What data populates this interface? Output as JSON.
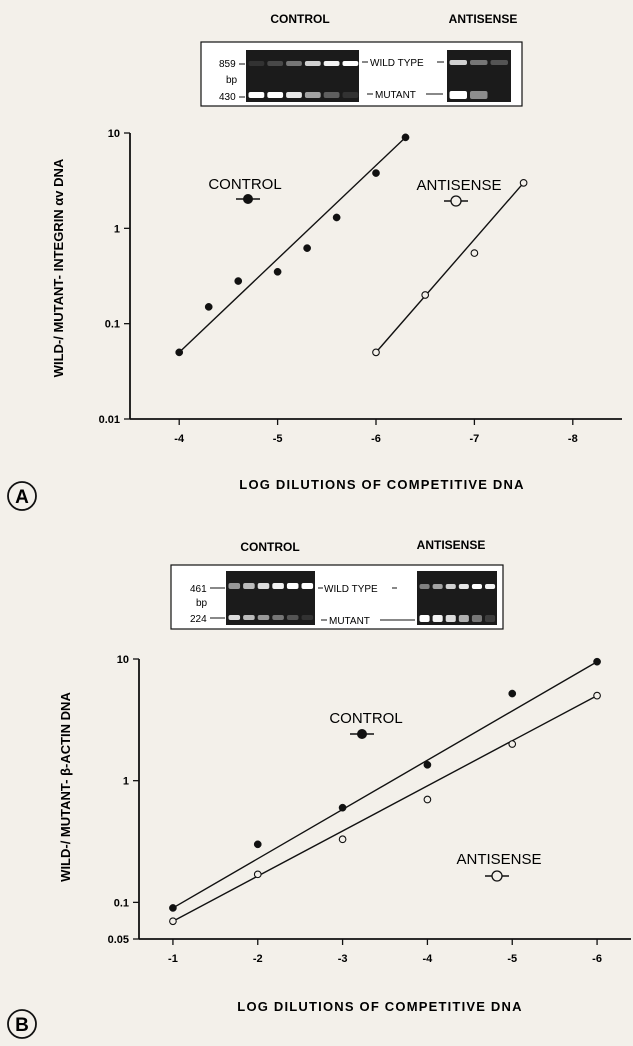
{
  "chart_data": [
    {
      "panel": "A",
      "type": "scatter",
      "ylabel": "WILD-/ MUTANT- INTEGRIN αv DNA",
      "xlabel": "LOG DILUTIONS OF COMPETITIVE DNA",
      "y_scale": "log",
      "xlim": [
        -3.5,
        -8.5
      ],
      "ylim": [
        0.01,
        10
      ],
      "x_ticks": [
        -4,
        -5,
        -6,
        -7,
        -8
      ],
      "x_tick_labels": [
        "-4",
        "-5",
        "-6",
        "-7",
        "-8"
      ],
      "y_ticks": [
        0.01,
        0.1,
        1,
        10
      ],
      "y_tick_labels": [
        "0.01",
        "0.1",
        "1",
        "10"
      ],
      "grid": false,
      "series": [
        {
          "name": "CONTROL",
          "marker": "filled-circle",
          "x": [
            -4.0,
            -4.3,
            -4.6,
            -5.0,
            -5.3,
            -5.6,
            -6.0,
            -6.3
          ],
          "y": [
            0.05,
            0.15,
            0.28,
            0.35,
            0.62,
            1.3,
            3.8,
            9.0
          ],
          "fit": {
            "x": [
              -4.0,
              -6.3
            ],
            "y": [
              0.05,
              9.0
            ]
          }
        },
        {
          "name": "ANTISENSE",
          "marker": "open-circle",
          "x": [
            -6.0,
            -6.5,
            -7.0,
            -7.5
          ],
          "y": [
            0.05,
            0.2,
            0.55,
            3.0
          ],
          "fit": {
            "x": [
              -6.0,
              -7.5
            ],
            "y": [
              0.05,
              3.0
            ]
          }
        }
      ],
      "gel": {
        "control_title": "CONTROL",
        "antisense_title": "ANTISENSE",
        "size_top": "859",
        "size_unit": "bp",
        "size_bottom": "430",
        "band_top": "WILD TYPE",
        "band_bottom": "MUTANT"
      }
    },
    {
      "panel": "B",
      "type": "scatter",
      "ylabel": "WILD-/ MUTANT- β-ACTIN DNA",
      "xlabel": "LOG DILUTIONS OF COMPETITIVE DNA",
      "y_scale": "log",
      "xlim": [
        -0.6,
        -6.4
      ],
      "ylim": [
        0.05,
        10
      ],
      "x_ticks": [
        -1,
        -2,
        -3,
        -4,
        -5,
        -6
      ],
      "x_tick_labels": [
        "-1",
        "-2",
        "-3",
        "-4",
        "-5",
        "-6"
      ],
      "y_ticks": [
        0.05,
        0.1,
        1,
        10
      ],
      "y_tick_labels": [
        "0.05",
        "0.1",
        "1",
        "10"
      ],
      "grid": false,
      "series": [
        {
          "name": "CONTROL",
          "marker": "filled-circle",
          "x": [
            -1,
            -2,
            -3,
            -4,
            -5,
            -6
          ],
          "y": [
            0.09,
            0.3,
            0.6,
            1.35,
            5.2,
            9.5
          ],
          "fit": {
            "x": [
              -1,
              -6
            ],
            "y": [
              0.09,
              9.5
            ]
          }
        },
        {
          "name": "ANTISENSE",
          "marker": "open-circle",
          "x": [
            -1,
            -2,
            -3,
            -4,
            -5,
            -6
          ],
          "y": [
            0.07,
            0.17,
            0.33,
            0.7,
            2.0,
            5.0
          ],
          "fit": {
            "x": [
              -1,
              -6
            ],
            "y": [
              0.07,
              5.0
            ]
          }
        }
      ],
      "gel": {
        "control_title": "CONTROL",
        "antisense_title": "ANTISENSE",
        "size_top": "461",
        "size_unit": "bp",
        "size_bottom": "224",
        "band_top": "WILD TYPE",
        "band_bottom": "MUTANT"
      }
    }
  ]
}
